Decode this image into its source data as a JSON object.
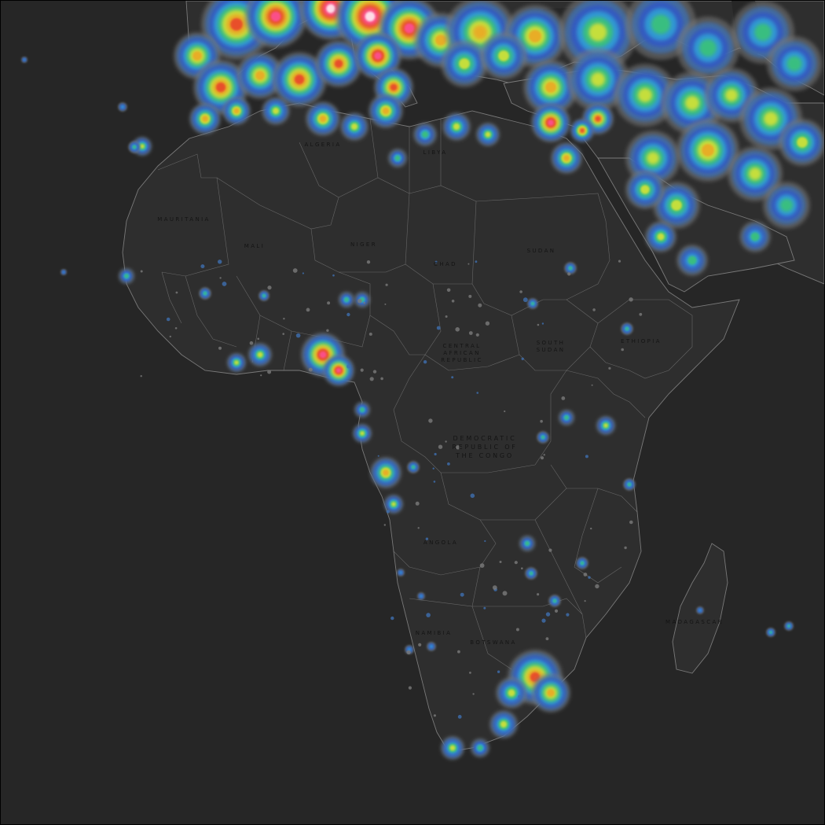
{
  "map": {
    "subject": "Artificial night sky brightness over Africa, Europe and the Middle East",
    "background_color": "#262626",
    "land_color": "#2e2e2e",
    "border_color": "#7a7a7a",
    "label_color": "#141414",
    "brightness_palette": [
      "#3a3a3a",
      "#7a7a7a",
      "#3f6fb0",
      "#2f55c8",
      "#2ea6d8",
      "#3cc86b",
      "#e8e62a",
      "#f0a020",
      "#e83a2a",
      "#ff4fa0",
      "#ffffff"
    ]
  },
  "labels": [
    {
      "id": "mauritania",
      "text": "MAURITANIA"
    },
    {
      "id": "mali",
      "text": "MALI"
    },
    {
      "id": "niger",
      "text": "NIGER"
    },
    {
      "id": "chad",
      "text": "CHAD"
    },
    {
      "id": "sudan",
      "text": "SUDAN"
    },
    {
      "id": "car-1",
      "text": "CENTRAL"
    },
    {
      "id": "car-2",
      "text": "AFRICAN"
    },
    {
      "id": "car-3",
      "text": "REPUBLIC"
    },
    {
      "id": "south-sudan-1",
      "text": "SOUTH"
    },
    {
      "id": "south-sudan-2",
      "text": "SUDAN"
    },
    {
      "id": "ethiopia",
      "text": "ETHIOPIA"
    },
    {
      "id": "drc-1",
      "text": "DEMOCRATIC"
    },
    {
      "id": "drc-2",
      "text": "REPUBLIC OF"
    },
    {
      "id": "drc-3",
      "text": "THE CONGO"
    },
    {
      "id": "angola",
      "text": "ANGOLA"
    },
    {
      "id": "namibia",
      "text": "NAMIBIA"
    },
    {
      "id": "botswana",
      "text": "BOTSWANA"
    },
    {
      "id": "madagascar",
      "text": "MADAGASCAR"
    },
    {
      "id": "algeria",
      "text": "ALGERIA"
    },
    {
      "id": "libya",
      "text": "LIBYA"
    }
  ]
}
